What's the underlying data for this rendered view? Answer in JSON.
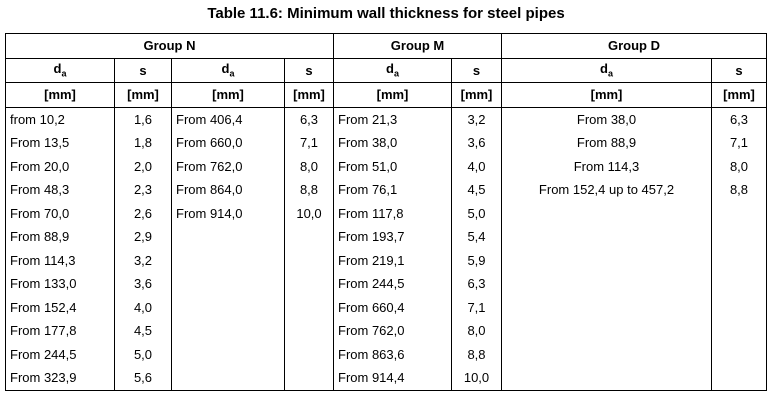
{
  "title": "Table 11.6: Minimum wall thickness for steel pipes",
  "groups": [
    "Group N",
    "Group M",
    "Group D"
  ],
  "header": {
    "da": "d",
    "da_sub": "a",
    "s": "s",
    "unit": "[mm]"
  },
  "rows": [
    {
      "n1_da": "from 10,2",
      "n1_s": "1,6",
      "n2_da": "From 406,4",
      "n2_s": "6,3",
      "m_da": "From 21,3",
      "m_s": "3,2",
      "d_da": "From 38,0",
      "d_s": "6,3"
    },
    {
      "n1_da": "From 13,5",
      "n1_s": "1,8",
      "n2_da": "From 660,0",
      "n2_s": "7,1",
      "m_da": "From 38,0",
      "m_s": "3,6",
      "d_da": "From 88,9",
      "d_s": "7,1"
    },
    {
      "n1_da": "From 20,0",
      "n1_s": "2,0",
      "n2_da": "From 762,0",
      "n2_s": "8,0",
      "m_da": "From 51,0",
      "m_s": "4,0",
      "d_da": "From 114,3",
      "d_s": "8,0"
    },
    {
      "n1_da": "From 48,3",
      "n1_s": "2,3",
      "n2_da": "From 864,0",
      "n2_s": "8,8",
      "m_da": "From 76,1",
      "m_s": "4,5",
      "d_da": "From 152,4 up to 457,2",
      "d_s": "8,8"
    },
    {
      "n1_da": "From 70,0",
      "n1_s": "2,6",
      "n2_da": "From 914,0",
      "n2_s": "10,0",
      "m_da": "From 117,8",
      "m_s": "5,0",
      "d_da": "",
      "d_s": ""
    },
    {
      "n1_da": "From 88,9",
      "n1_s": "2,9",
      "n2_da": "",
      "n2_s": "",
      "m_da": "From 193,7",
      "m_s": "5,4",
      "d_da": "",
      "d_s": ""
    },
    {
      "n1_da": "From 114,3",
      "n1_s": "3,2",
      "n2_da": "",
      "n2_s": "",
      "m_da": "From 219,1",
      "m_s": "5,9",
      "d_da": "",
      "d_s": ""
    },
    {
      "n1_da": "From 133,0",
      "n1_s": "3,6",
      "n2_da": "",
      "n2_s": "",
      "m_da": "From 244,5",
      "m_s": "6,3",
      "d_da": "",
      "d_s": ""
    },
    {
      "n1_da": "From 152,4",
      "n1_s": "4,0",
      "n2_da": "",
      "n2_s": "",
      "m_da": "From 660,4",
      "m_s": "7,1",
      "d_da": "",
      "d_s": ""
    },
    {
      "n1_da": "From 177,8",
      "n1_s": "4,5",
      "n2_da": "",
      "n2_s": "",
      "m_da": "From 762,0",
      "m_s": "8,0",
      "d_da": "",
      "d_s": ""
    },
    {
      "n1_da": "From 244,5",
      "n1_s": "5,0",
      "n2_da": "",
      "n2_s": "",
      "m_da": "From 863,6",
      "m_s": "8,8",
      "d_da": "",
      "d_s": ""
    },
    {
      "n1_da": "From 323,9",
      "n1_s": "5,6",
      "n2_da": "",
      "n2_s": "",
      "m_da": "From 914,4",
      "m_s": "10,0",
      "d_da": "",
      "d_s": ""
    }
  ]
}
